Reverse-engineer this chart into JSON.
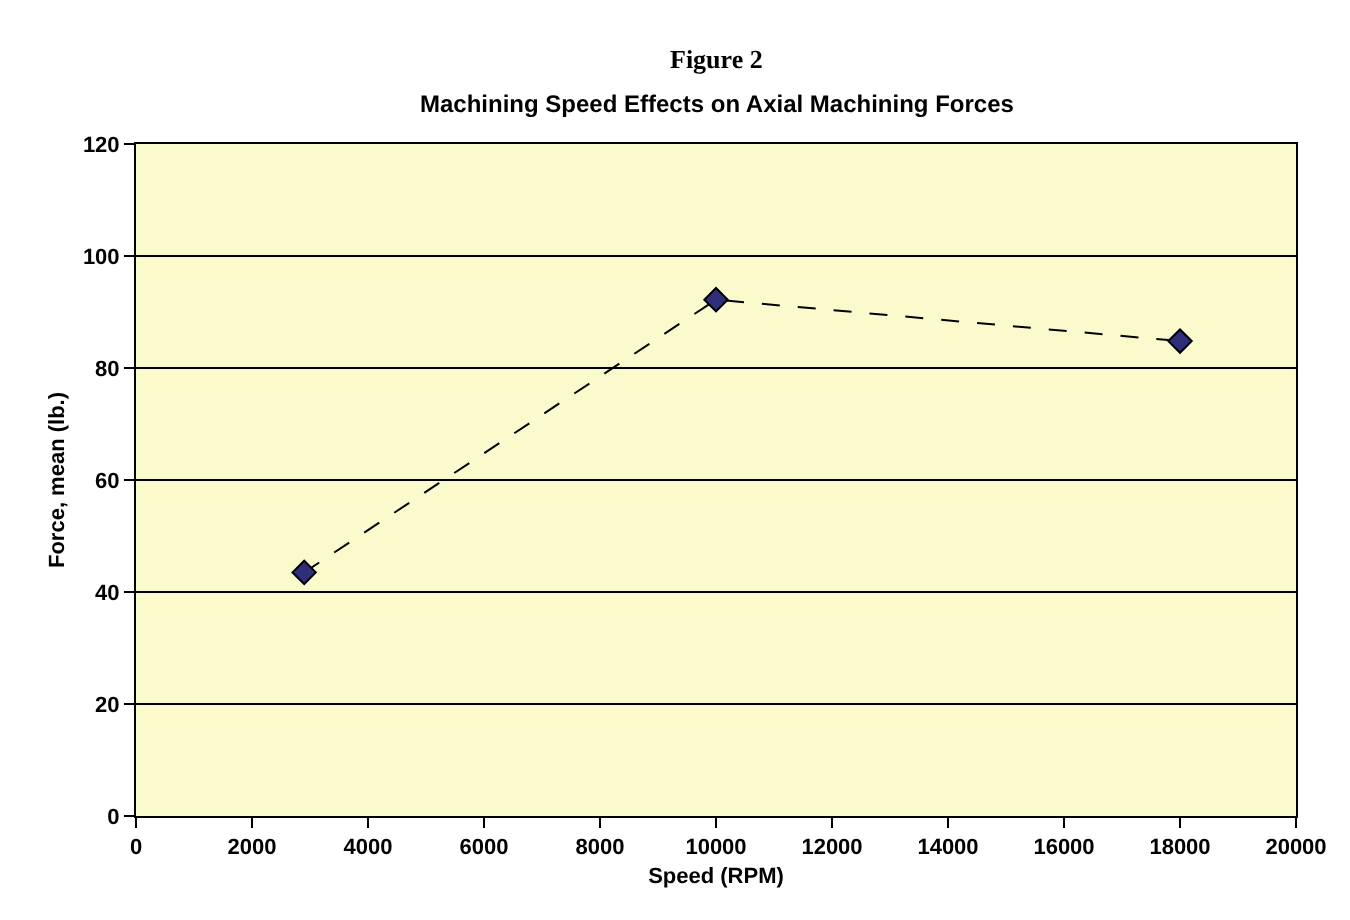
{
  "chart_data": {
    "type": "line",
    "title": "Figure 2",
    "subtitle": "Machining Speed Effects on Axial Machining Forces",
    "xlabel": "Speed (RPM)",
    "ylabel": "Force, mean (lb.)",
    "x": [
      2900,
      10000,
      18000
    ],
    "series": [
      {
        "color": "#2e2e7a",
        "values": [
          43.5,
          92.2,
          84.8
        ]
      }
    ],
    "xlim": [
      0,
      20000
    ],
    "xticks": [
      0,
      2000,
      4000,
      6000,
      8000,
      10000,
      12000,
      14000,
      16000,
      18000,
      20000
    ],
    "ylim": [
      0,
      120
    ],
    "yticks": [
      0,
      20,
      40,
      60,
      80,
      100,
      120
    ],
    "grid": "y",
    "marker": "diamond",
    "line_style": "dashed"
  }
}
